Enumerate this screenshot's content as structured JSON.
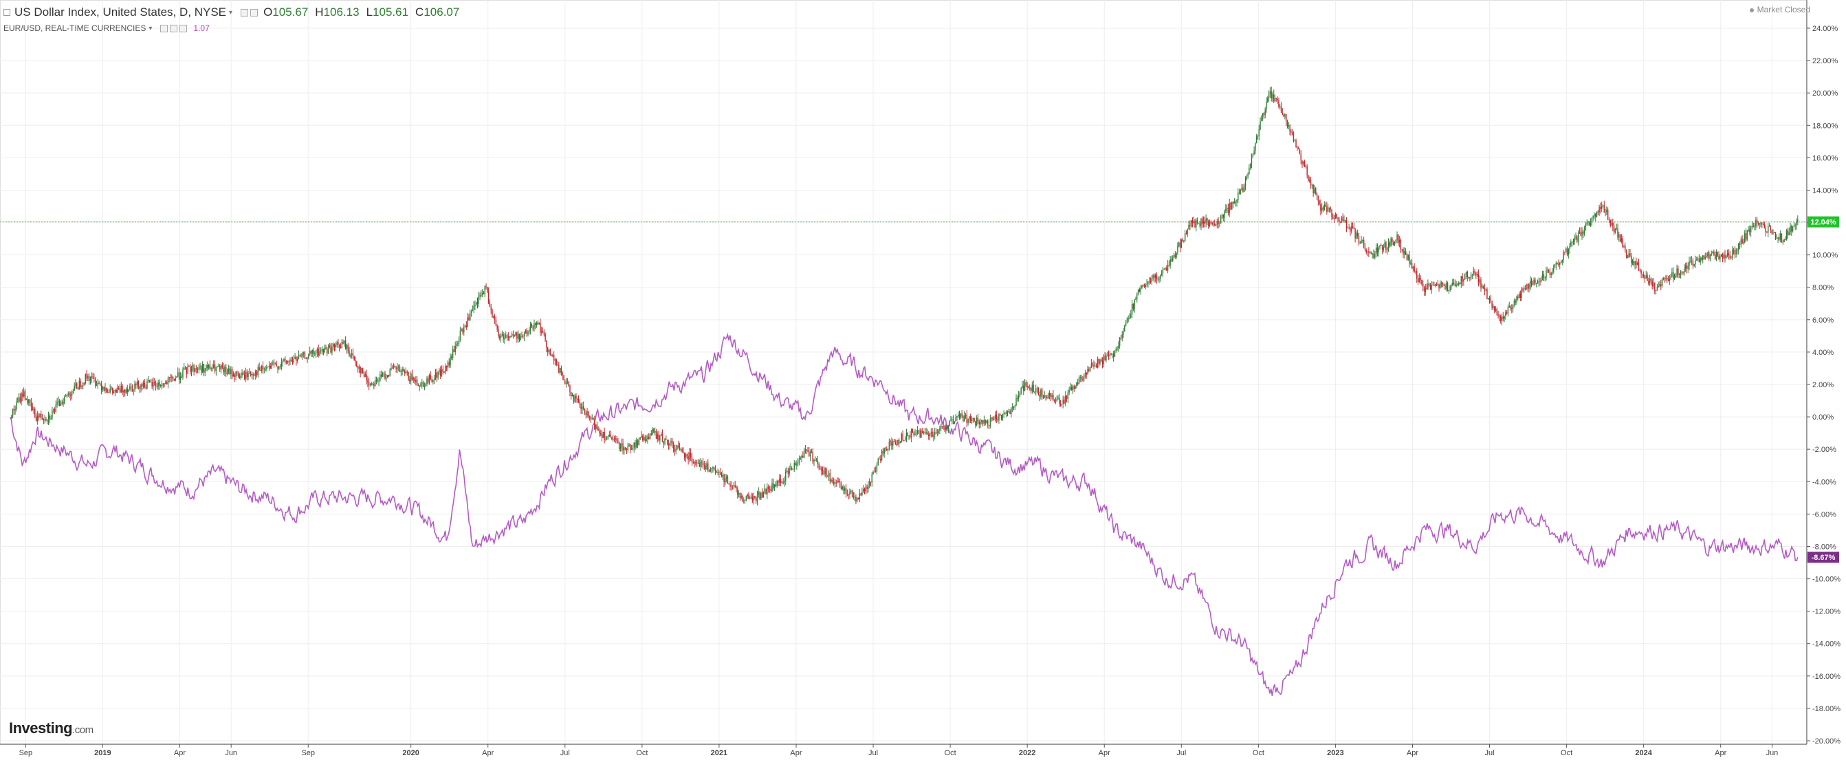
{
  "legend": {
    "main_title": "US Dollar Index, United States, D, NYSE",
    "open_label": "O",
    "open": "105.67",
    "high_label": "H",
    "high": "106.13",
    "low_label": "L",
    "low": "105.61",
    "close_label": "C",
    "close": "106.07",
    "compare_title": "EUR/USD, REAL-TIME CURRENCIES",
    "compare_value": "1.07"
  },
  "market_status": "Market Closed",
  "brand": {
    "name": "Investing",
    "suffix": ".com"
  },
  "colors": {
    "up_candle": "#2f7d34",
    "down_candle": "#c0282d",
    "compare_line": "#b45cc4",
    "current_line": "#3fd13f",
    "current_badge": "#22c22a",
    "compare_badge": "#7b2f88",
    "grid": "#eeeeee"
  },
  "chart_data": {
    "type": "line",
    "y_scale": "percent change",
    "ylim": [
      -20,
      24
    ],
    "y_ticks": [
      "24.00%",
      "22.00%",
      "20.00%",
      "18.00%",
      "16.00%",
      "14.00%",
      "12.00%",
      "10.00%",
      "8.00%",
      "6.00%",
      "4.00%",
      "2.00%",
      "0.00%",
      "-2.00%",
      "-4.00%",
      "-6.00%",
      "-8.00%",
      "-10.00%",
      "-12.00%",
      "-14.00%",
      "-16.00%",
      "-18.00%",
      "-20.00%"
    ],
    "x_ticks": [
      {
        "label": "Sep",
        "t": 0.6
      },
      {
        "label": "2019",
        "t": 3.6
      },
      {
        "label": "Apr",
        "t": 6.6
      },
      {
        "label": "Jun",
        "t": 8.6
      },
      {
        "label": "Sep",
        "t": 11.6
      },
      {
        "label": "2020",
        "t": 15.6
      },
      {
        "label": "Apr",
        "t": 18.6
      },
      {
        "label": "Jul",
        "t": 21.6
      },
      {
        "label": "Oct",
        "t": 24.6
      },
      {
        "label": "2021",
        "t": 27.6
      },
      {
        "label": "Apr",
        "t": 30.6
      },
      {
        "label": "Jul",
        "t": 33.6
      },
      {
        "label": "Oct",
        "t": 36.6
      },
      {
        "label": "2022",
        "t": 39.6
      },
      {
        "label": "Apr",
        "t": 42.6
      },
      {
        "label": "Jul",
        "t": 45.6
      },
      {
        "label": "Oct",
        "t": 48.6
      },
      {
        "label": "2023",
        "t": 51.6
      },
      {
        "label": "Apr",
        "t": 54.6
      },
      {
        "label": "Jul",
        "t": 57.6
      },
      {
        "label": "Oct",
        "t": 60.6
      },
      {
        "label": "2024",
        "t": 63.6
      },
      {
        "label": "Apr",
        "t": 66.6
      },
      {
        "label": "Jun",
        "t": 68.6
      }
    ],
    "t_range": [
      -0.4,
      69.9
    ],
    "series": [
      {
        "name": "US Dollar Index",
        "style": "candlestick",
        "last": 12.04,
        "last_label": "12.04%",
        "points": [
          [
            0,
            0
          ],
          [
            0.5,
            1.5
          ],
          [
            1,
            0
          ],
          [
            1.5,
            0
          ],
          [
            2,
            1
          ],
          [
            3,
            2.5
          ],
          [
            4,
            1.5
          ],
          [
            5,
            2
          ],
          [
            6,
            2
          ],
          [
            7,
            3
          ],
          [
            8,
            3
          ],
          [
            9,
            2.5
          ],
          [
            10,
            3
          ],
          [
            11,
            3.5
          ],
          [
            12,
            4
          ],
          [
            13,
            4.5
          ],
          [
            14,
            2
          ],
          [
            15,
            3
          ],
          [
            16,
            2
          ],
          [
            17,
            3
          ],
          [
            17.5,
            5
          ],
          [
            18.5,
            8
          ],
          [
            19,
            5
          ],
          [
            20,
            5
          ],
          [
            20.5,
            6
          ],
          [
            21,
            4
          ],
          [
            21.5,
            2.5
          ],
          [
            22,
            1
          ],
          [
            23,
            -1
          ],
          [
            24,
            -2
          ],
          [
            25,
            -1
          ],
          [
            26,
            -2
          ],
          [
            27,
            -3
          ],
          [
            28,
            -4
          ],
          [
            28.5,
            -5
          ],
          [
            29,
            -5
          ],
          [
            30,
            -4
          ],
          [
            31,
            -2
          ],
          [
            32,
            -4
          ],
          [
            33,
            -5
          ],
          [
            33.5,
            -4
          ],
          [
            34,
            -2
          ],
          [
            35,
            -1
          ],
          [
            36,
            -1
          ],
          [
            37,
            0
          ],
          [
            38,
            -0.5
          ],
          [
            39,
            0.5
          ],
          [
            39.5,
            2
          ],
          [
            40,
            1.5
          ],
          [
            41,
            1
          ],
          [
            42,
            3
          ],
          [
            43,
            4
          ],
          [
            43.5,
            6
          ],
          [
            44,
            8
          ],
          [
            45,
            9
          ],
          [
            46,
            12
          ],
          [
            47,
            12
          ],
          [
            48,
            14
          ],
          [
            49,
            20
          ],
          [
            49.5,
            19
          ],
          [
            50,
            17
          ],
          [
            51,
            13
          ],
          [
            52,
            12
          ],
          [
            53,
            10
          ],
          [
            54,
            11
          ],
          [
            55,
            8
          ],
          [
            56,
            8
          ],
          [
            57,
            9
          ],
          [
            58,
            6
          ],
          [
            59,
            8
          ],
          [
            60,
            9
          ],
          [
            61,
            11
          ],
          [
            62,
            13
          ],
          [
            63,
            10
          ],
          [
            64,
            8
          ],
          [
            65,
            9
          ],
          [
            66,
            10
          ],
          [
            67,
            10
          ],
          [
            68,
            12
          ],
          [
            69,
            11
          ],
          [
            69.6,
            12
          ]
        ]
      },
      {
        "name": "EUR/USD",
        "style": "line",
        "last": -8.67,
        "last_label": "-8.67%",
        "points": [
          [
            0,
            0
          ],
          [
            0.5,
            -3
          ],
          [
            1,
            -1
          ],
          [
            2,
            -2
          ],
          [
            3,
            -3
          ],
          [
            4,
            -2
          ],
          [
            5,
            -3
          ],
          [
            6,
            -4
          ],
          [
            7,
            -4.5
          ],
          [
            8,
            -3.5
          ],
          [
            9,
            -4.5
          ],
          [
            10,
            -5
          ],
          [
            11,
            -6
          ],
          [
            12,
            -5
          ],
          [
            13,
            -5
          ],
          [
            14,
            -5
          ],
          [
            15,
            -5
          ],
          [
            16,
            -6
          ],
          [
            17,
            -7.5
          ],
          [
            17.5,
            -2
          ],
          [
            18,
            -8
          ],
          [
            19,
            -7
          ],
          [
            20,
            -6.5
          ],
          [
            21,
            -4
          ],
          [
            22,
            -2
          ],
          [
            23,
            0
          ],
          [
            24,
            0.5
          ],
          [
            25,
            1
          ],
          [
            26,
            2
          ],
          [
            27,
            2.5
          ],
          [
            28,
            5
          ],
          [
            29,
            3
          ],
          [
            30,
            1
          ],
          [
            31,
            0
          ],
          [
            32,
            4
          ],
          [
            33,
            3
          ],
          [
            34,
            2
          ],
          [
            35,
            0
          ],
          [
            36,
            0
          ],
          [
            37,
            -1
          ],
          [
            38,
            -2
          ],
          [
            39,
            -3
          ],
          [
            40,
            -3
          ],
          [
            41,
            -4
          ],
          [
            42,
            -4
          ],
          [
            43,
            -7
          ],
          [
            44,
            -8
          ],
          [
            45,
            -10
          ],
          [
            46,
            -10
          ],
          [
            47,
            -13
          ],
          [
            48,
            -14
          ],
          [
            49,
            -17
          ],
          [
            50,
            -16
          ],
          [
            51,
            -12
          ],
          [
            52,
            -9
          ],
          [
            53,
            -8
          ],
          [
            54,
            -9
          ],
          [
            55,
            -7
          ],
          [
            56,
            -7
          ],
          [
            57,
            -8
          ],
          [
            58,
            -6
          ],
          [
            59,
            -6
          ],
          [
            60,
            -7
          ],
          [
            61,
            -8
          ],
          [
            62,
            -9
          ],
          [
            63,
            -7
          ],
          [
            64,
            -7
          ],
          [
            65,
            -7
          ],
          [
            66,
            -8
          ],
          [
            67,
            -8
          ],
          [
            68,
            -8
          ],
          [
            69,
            -8
          ],
          [
            69.6,
            -8.67
          ]
        ]
      }
    ]
  }
}
